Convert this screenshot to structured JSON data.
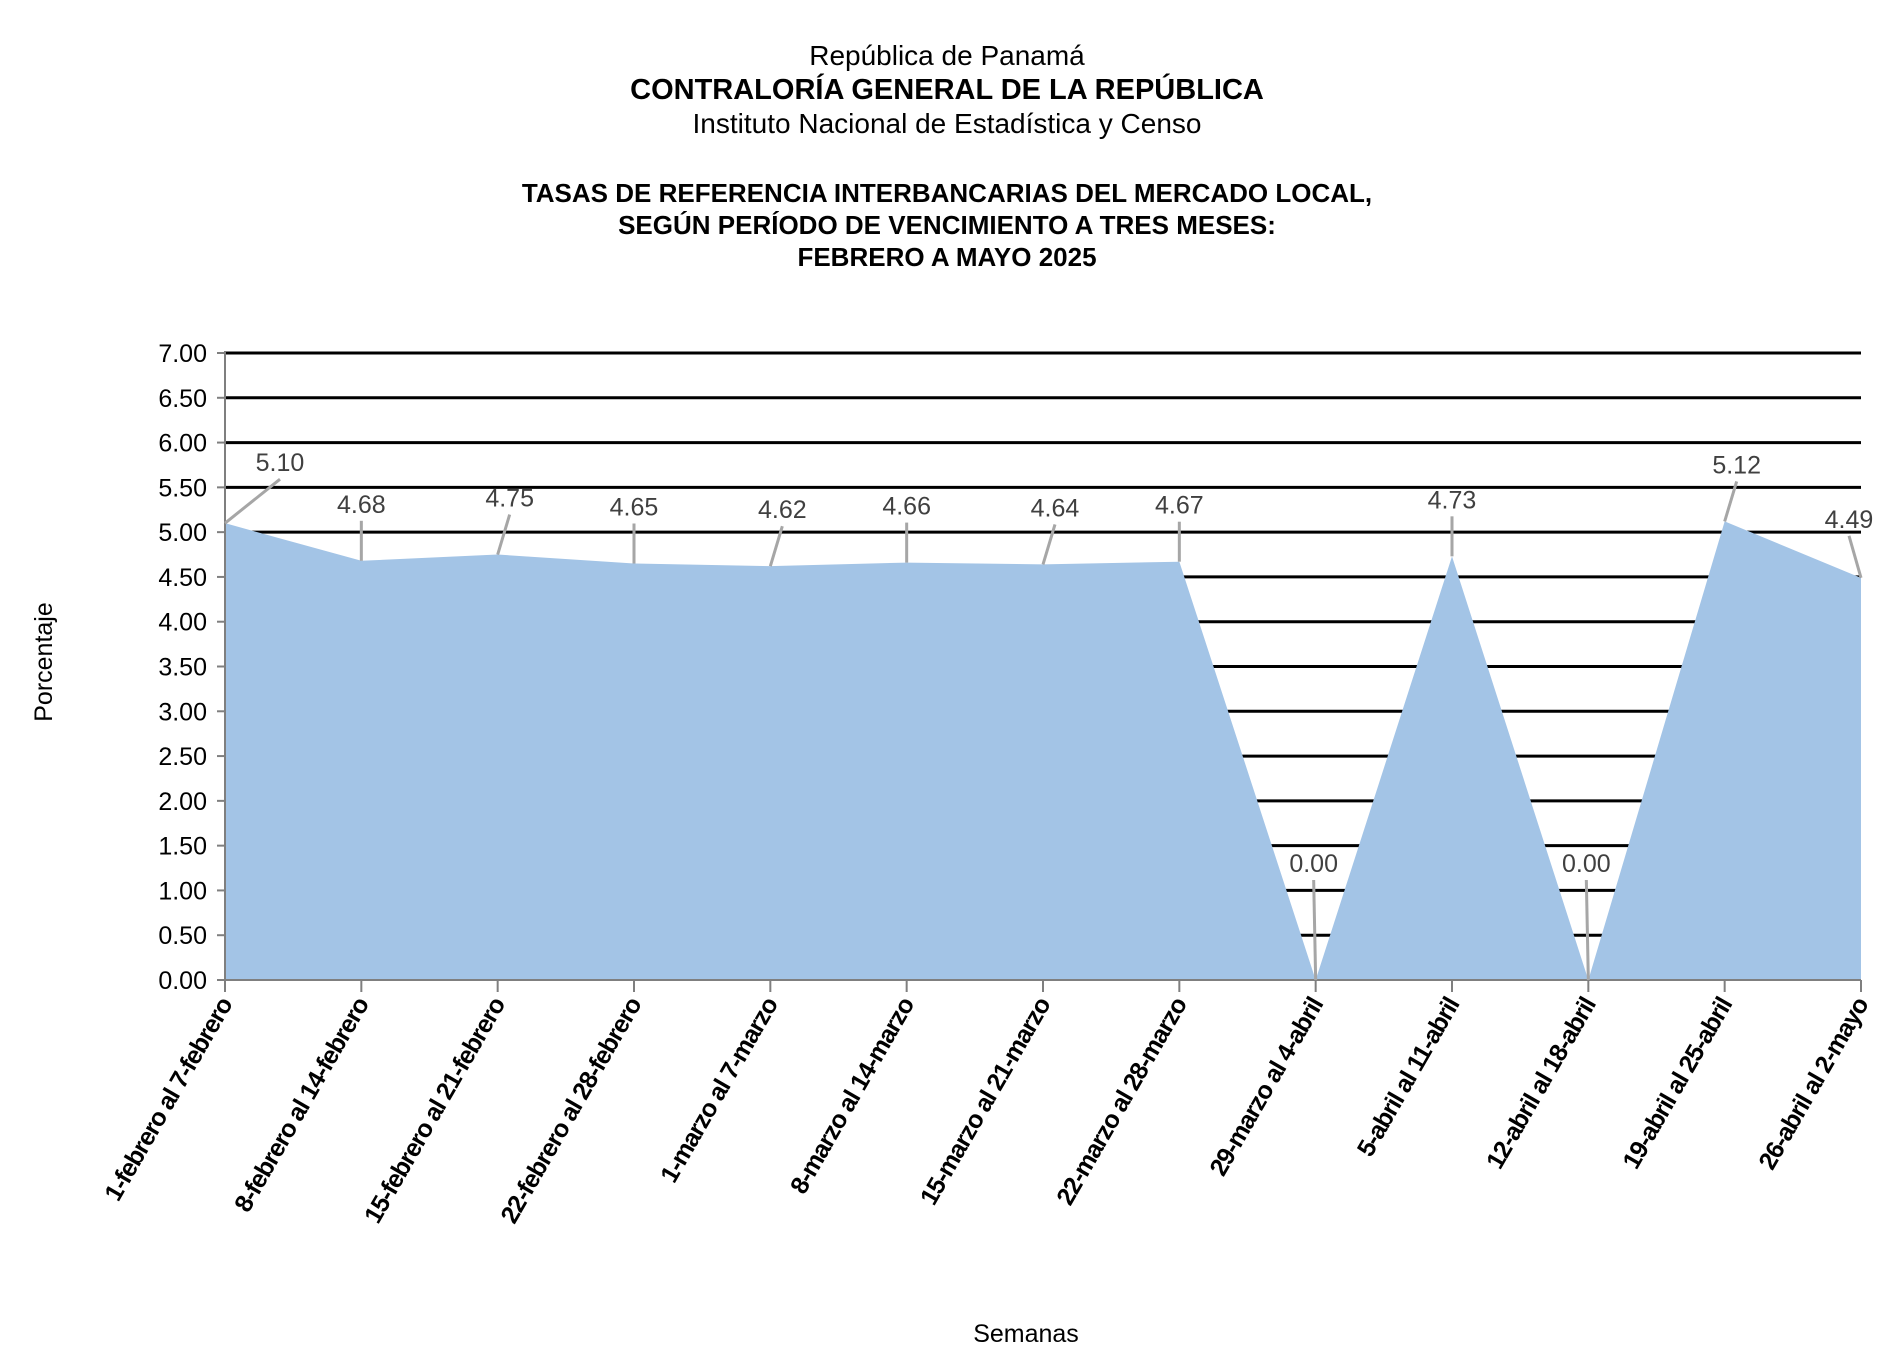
{
  "header": {
    "line1": "República de Panamá",
    "line2": "CONTRALORÍA GENERAL DE LA REPÚBLICA",
    "line3": "Instituto Nacional de Estadística y Censo"
  },
  "chart_data": {
    "type": "area",
    "title_lines": [
      "TASAS DE REFERENCIA INTERBANCARIAS DEL MERCADO LOCAL,",
      "SEGÚN PERÍODO DE VENCIMIENTO A TRES MESES:",
      "FEBRERO A MAYO 2025"
    ],
    "xlabel": "Semanas",
    "ylabel": "Porcentaje",
    "ylim": [
      0,
      7
    ],
    "yticks": [
      "0.00",
      "0.50",
      "1.00",
      "1.50",
      "2.00",
      "2.50",
      "3.00",
      "3.50",
      "4.00",
      "4.50",
      "5.00",
      "5.50",
      "6.00",
      "6.50",
      "7.00"
    ],
    "categories": [
      "1-febrero al 7-febrero",
      "8-febrero al 14-febrero",
      "15-febrero al 21-febrero",
      "22-febrero al 28-febrero",
      "1-marzo al 7-marzo",
      "8-marzo al 14-marzo",
      "15-marzo al 21-marzo",
      "22-marzo al 28-marzo",
      "29-marzo al 4-abril",
      "5-abril al 11-abril",
      "12-abril al 18-abril",
      "19-abril al 25-abril",
      "26-abril al 2-mayo"
    ],
    "values": [
      5.1,
      4.68,
      4.75,
      4.65,
      4.62,
      4.66,
      4.64,
      4.67,
      0.0,
      4.73,
      0.0,
      5.12,
      4.49
    ],
    "data_labels": [
      "5.10",
      "4.68",
      "4.75",
      "4.65",
      "4.62",
      "4.66",
      "4.64",
      "4.67",
      "0.00",
      "4.73",
      "0.00",
      "5.12",
      "4.49"
    ],
    "grid": true,
    "colors": {
      "fill": "#a3c4e6",
      "grid": "#000000",
      "leader": "#a6a6a6"
    }
  }
}
